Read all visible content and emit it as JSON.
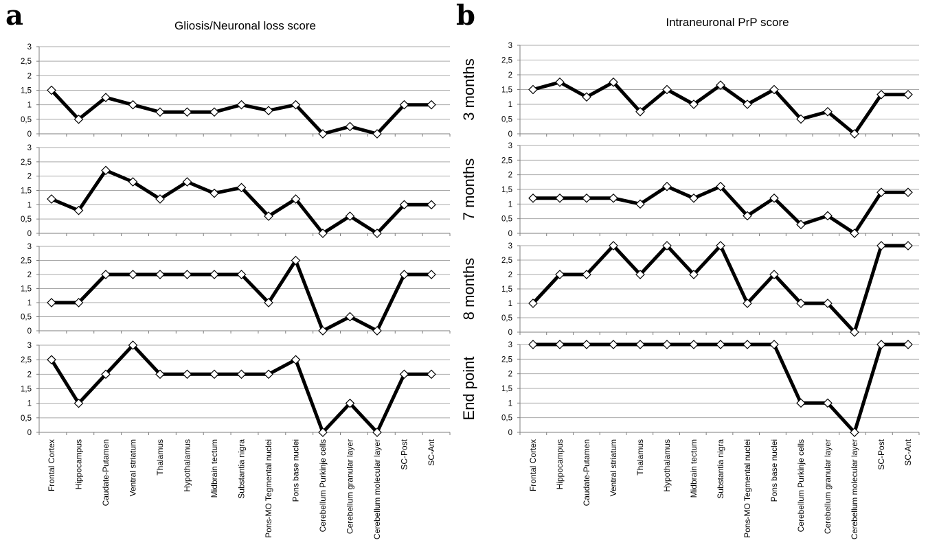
{
  "panels": {
    "a": {
      "letter": "a",
      "title": "Gliosis/Neuronal loss score"
    },
    "b": {
      "letter": "b",
      "title": "Intraneuronal PrP score"
    }
  },
  "y_ticks": [
    "0",
    "0,5",
    "1",
    "1,5",
    "2",
    "2,5",
    "3"
  ],
  "categories": [
    "Frontal Cortex",
    "Hippocampus",
    "Caudate-Putamen",
    "Ventral striatum",
    "Thalamus",
    "Hypothalamus",
    "Midbrain tectum",
    "Substantia nigra",
    "Pons-MO Tegmental nuclei",
    "Pons base nuclei",
    "Cerebellum Purkinje cells",
    "Cerebellum  granular layer",
    "Cerebellum molecular layer",
    "SC-Post",
    "SC-Ant"
  ],
  "chart_data": [
    {
      "type": "line",
      "panel": "a",
      "row": 1,
      "title": "Gliosis/Neuronal loss score",
      "row_label": "",
      "ylim": [
        0,
        3
      ],
      "grid": true,
      "legend": "none",
      "series": [
        {
          "values": [
            1.5,
            0.5,
            1.25,
            1.0,
            0.75,
            0.75,
            0.75,
            1.0,
            0.8,
            1.0,
            0.0,
            0.25,
            0.0,
            1.0,
            1.0
          ]
        }
      ]
    },
    {
      "type": "line",
      "panel": "a",
      "row": 2,
      "title": "",
      "row_label": "",
      "ylim": [
        0,
        3
      ],
      "grid": true,
      "legend": "none",
      "series": [
        {
          "values": [
            1.2,
            0.8,
            2.2,
            1.8,
            1.2,
            1.8,
            1.4,
            1.6,
            0.6,
            1.2,
            0.0,
            0.6,
            0.0,
            1.0,
            1.0
          ]
        }
      ]
    },
    {
      "type": "line",
      "panel": "a",
      "row": 3,
      "title": "",
      "row_label": "",
      "ylim": [
        0,
        3
      ],
      "grid": true,
      "legend": "none",
      "series": [
        {
          "values": [
            1.0,
            1.0,
            2.0,
            2.0,
            2.0,
            2.0,
            2.0,
            2.0,
            1.0,
            2.5,
            0.0,
            0.5,
            0.0,
            2.0,
            2.0
          ]
        }
      ]
    },
    {
      "type": "line",
      "panel": "a",
      "row": 4,
      "title": "",
      "row_label": "",
      "ylim": [
        0,
        3
      ],
      "grid": true,
      "legend": "none",
      "series": [
        {
          "values": [
            2.5,
            1.0,
            2.0,
            3.0,
            2.0,
            2.0,
            2.0,
            2.0,
            2.0,
            2.5,
            0.0,
            1.0,
            0.0,
            2.0,
            2.0
          ]
        }
      ]
    },
    {
      "type": "line",
      "panel": "b",
      "row": 1,
      "title": "Intraneuronal PrP score",
      "row_label": "3 months",
      "ylim": [
        0,
        3
      ],
      "grid": true,
      "legend": "none",
      "series": [
        {
          "values": [
            1.5,
            1.75,
            1.25,
            1.75,
            0.75,
            1.5,
            1.0,
            1.65,
            1.0,
            1.5,
            0.5,
            0.75,
            0.0,
            1.33,
            1.33
          ]
        }
      ]
    },
    {
      "type": "line",
      "panel": "b",
      "row": 2,
      "title": "",
      "row_label": "7 months",
      "ylim": [
        0,
        3
      ],
      "grid": true,
      "legend": "none",
      "series": [
        {
          "values": [
            1.2,
            1.2,
            1.2,
            1.2,
            1.0,
            1.6,
            1.2,
            1.6,
            0.6,
            1.2,
            0.3,
            0.6,
            0.0,
            1.4,
            1.4
          ]
        }
      ]
    },
    {
      "type": "line",
      "panel": "b",
      "row": 3,
      "title": "",
      "row_label": "8 months",
      "ylim": [
        0,
        3
      ],
      "grid": true,
      "legend": "none",
      "series": [
        {
          "values": [
            1.0,
            2.0,
            2.0,
            3.0,
            2.0,
            3.0,
            2.0,
            3.0,
            1.0,
            2.0,
            1.0,
            1.0,
            0.0,
            3.0,
            3.0
          ]
        }
      ]
    },
    {
      "type": "line",
      "panel": "b",
      "row": 4,
      "title": "",
      "row_label": "End point",
      "ylim": [
        0,
        3
      ],
      "grid": true,
      "legend": "none",
      "series": [
        {
          "values": [
            3.0,
            3.0,
            3.0,
            3.0,
            3.0,
            3.0,
            3.0,
            3.0,
            3.0,
            3.0,
            1.0,
            1.0,
            0.0,
            3.0,
            3.0
          ]
        }
      ]
    }
  ]
}
